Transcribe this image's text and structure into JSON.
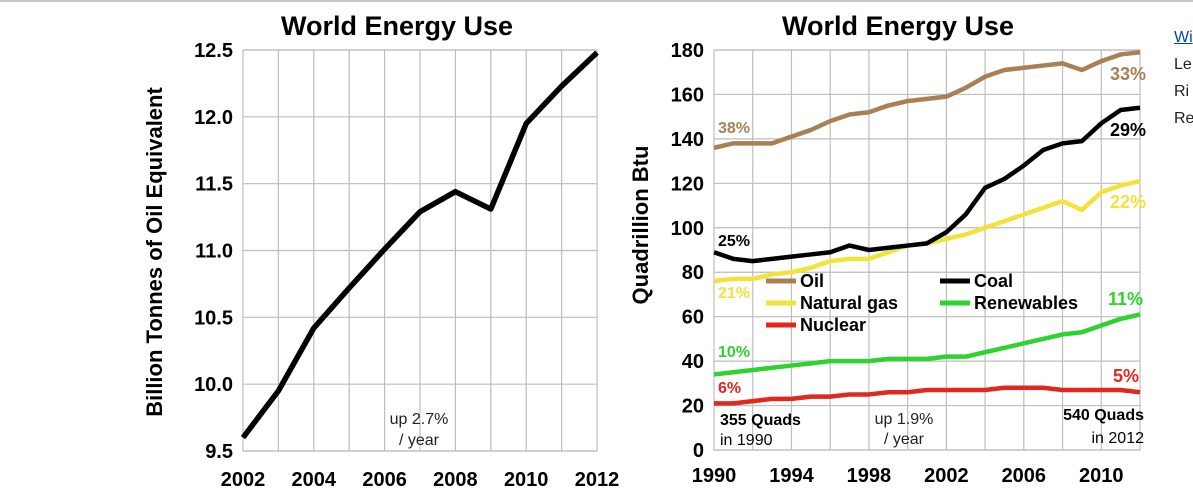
{
  "colors": {
    "oil": "#a98056",
    "coal": "#000000",
    "natural_gas": "#f3e23a",
    "renewables": "#2fd22f",
    "nuclear": "#e0281c",
    "grid": "#bdbdbd"
  },
  "chart_data": [
    {
      "type": "line",
      "title": "World Energy Use",
      "xlabel": "",
      "ylabel": "Billion Tonnes of Oil Equivalent",
      "xlim": [
        2002,
        2012
      ],
      "ylim": [
        9.5,
        12.5
      ],
      "xticks": [
        "2002",
        "2004",
        "2006",
        "2008",
        "2010",
        "2012"
      ],
      "yticks": [
        "9.5",
        "10.0",
        "10.5",
        "11.0",
        "11.5",
        "12.0",
        "12.5"
      ],
      "grid": true,
      "series": [
        {
          "name": "World energy use",
          "x": [
            2002,
            2003,
            2004,
            2005,
            2006,
            2007,
            2008,
            2009,
            2010,
            2011,
            2012
          ],
          "values": [
            9.6,
            9.95,
            10.42,
            10.72,
            11.01,
            11.29,
            11.44,
            11.31,
            11.95,
            12.23,
            12.48
          ]
        }
      ],
      "annotations": [
        {
          "id": "growth",
          "lines": [
            "up 2.7%",
            "/ year"
          ]
        }
      ]
    },
    {
      "type": "line",
      "title": "World Energy Use",
      "xlabel": "",
      "ylabel": "Quadrillion Btu",
      "xlim": [
        1990,
        2012
      ],
      "ylim": [
        0,
        180
      ],
      "xticks": [
        "1990",
        "1994",
        "1998",
        "2002",
        "2006",
        "2010"
      ],
      "yticks": [
        "0",
        "20",
        "40",
        "60",
        "80",
        "100",
        "120",
        "140",
        "160",
        "180"
      ],
      "grid": true,
      "legend": [
        {
          "series": "oil",
          "label": "Oil"
        },
        {
          "series": "coal",
          "label": "Coal"
        },
        {
          "series": "natural_gas",
          "label": "Natural gas"
        },
        {
          "series": "renewables",
          "label": "Renewables"
        },
        {
          "series": "nuclear",
          "label": "Nuclear"
        }
      ],
      "series": [
        {
          "id": "oil",
          "name": "Oil",
          "start_label": "38%",
          "end_label": "33%",
          "x": [
            1990,
            1991,
            1992,
            1993,
            1994,
            1995,
            1996,
            1997,
            1998,
            1999,
            2000,
            2001,
            2002,
            2003,
            2004,
            2005,
            2006,
            2007,
            2008,
            2009,
            2010,
            2011,
            2012
          ],
          "values": [
            136,
            138,
            138,
            138,
            141,
            144,
            148,
            151,
            152,
            155,
            157,
            158,
            159,
            163,
            168,
            171,
            172,
            173,
            174,
            171,
            175,
            178,
            179
          ]
        },
        {
          "id": "coal",
          "name": "Coal",
          "start_label": "25%",
          "end_label": "29%",
          "x": [
            1990,
            1991,
            1992,
            1993,
            1994,
            1995,
            1996,
            1997,
            1998,
            1999,
            2000,
            2001,
            2002,
            2003,
            2004,
            2005,
            2006,
            2007,
            2008,
            2009,
            2010,
            2011,
            2012
          ],
          "values": [
            89,
            86,
            85,
            86,
            87,
            88,
            89,
            92,
            90,
            91,
            92,
            93,
            98,
            106,
            118,
            122,
            128,
            135,
            138,
            139,
            147,
            153,
            154
          ]
        },
        {
          "id": "natural_gas",
          "name": "Natural gas",
          "start_label": "21%",
          "end_label": "22%",
          "x": [
            1990,
            1991,
            1992,
            1993,
            1994,
            1995,
            1996,
            1997,
            1998,
            1999,
            2000,
            2001,
            2002,
            2003,
            2004,
            2005,
            2006,
            2007,
            2008,
            2009,
            2010,
            2011,
            2012
          ],
          "values": [
            76,
            77,
            77,
            79,
            80,
            82,
            85,
            86,
            86,
            89,
            92,
            93,
            95,
            97,
            100,
            103,
            106,
            109,
            112,
            108,
            116,
            119,
            121
          ]
        },
        {
          "id": "renewables",
          "name": "Renewables",
          "start_label": "10%",
          "end_label": "11%",
          "x": [
            1990,
            1991,
            1992,
            1993,
            1994,
            1995,
            1996,
            1997,
            1998,
            1999,
            2000,
            2001,
            2002,
            2003,
            2004,
            2005,
            2006,
            2007,
            2008,
            2009,
            2010,
            2011,
            2012
          ],
          "values": [
            34,
            35,
            36,
            37,
            38,
            39,
            40,
            40,
            40,
            41,
            41,
            41,
            42,
            42,
            44,
            46,
            48,
            50,
            52,
            53,
            56,
            59,
            61
          ]
        },
        {
          "id": "nuclear",
          "name": "Nuclear",
          "start_label": "6%",
          "end_label": "5%",
          "x": [
            1990,
            1991,
            1992,
            1993,
            1994,
            1995,
            1996,
            1997,
            1998,
            1999,
            2000,
            2001,
            2002,
            2003,
            2004,
            2005,
            2006,
            2007,
            2008,
            2009,
            2010,
            2011,
            2012
          ],
          "values": [
            21,
            21,
            22,
            23,
            23,
            24,
            24,
            25,
            25,
            26,
            26,
            27,
            27,
            27,
            27,
            28,
            28,
            28,
            27,
            27,
            27,
            27,
            26
          ]
        }
      ],
      "annotations": [
        {
          "id": "start_total",
          "lines": [
            "355 Quads",
            "in 1990"
          ]
        },
        {
          "id": "growth",
          "lines": [
            "up 1.9%",
            "/ year"
          ]
        },
        {
          "id": "end_total",
          "lines": [
            "540 Quads",
            "in 2012"
          ]
        }
      ]
    }
  ],
  "side_text": {
    "link": "Wi",
    "lines": [
      "Le",
      "Ri",
      "Re"
    ]
  }
}
